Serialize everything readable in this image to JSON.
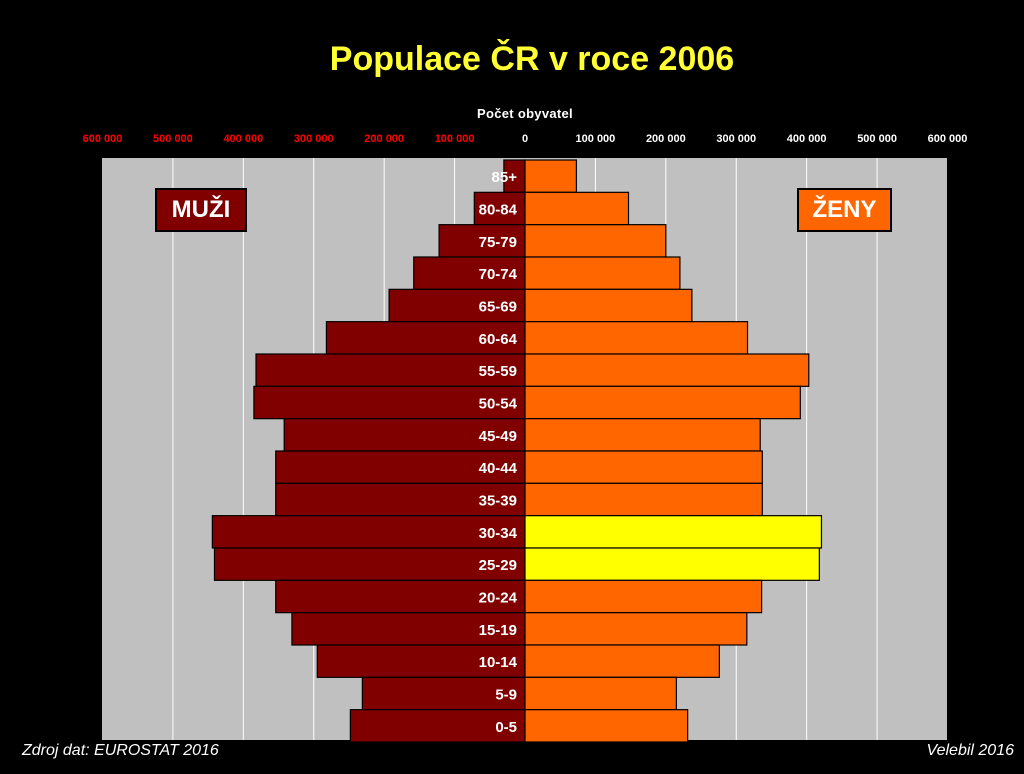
{
  "chart_data": {
    "type": "bar",
    "orientation": "horizontal-population-pyramid",
    "title": "Populace ČR v roce 2006",
    "xlabel": "Počet obyvatel",
    "xlim": [
      -600000,
      600000
    ],
    "x_ticks": [
      {
        "value": -600000,
        "label": "600 000"
      },
      {
        "value": -500000,
        "label": "500 000"
      },
      {
        "value": -400000,
        "label": "400 000"
      },
      {
        "value": -300000,
        "label": "300 000"
      },
      {
        "value": -200000,
        "label": "200 000"
      },
      {
        "value": -100000,
        "label": "100 000"
      },
      {
        "value": 0,
        "label": "0"
      },
      {
        "value": 100000,
        "label": "100 000"
      },
      {
        "value": 200000,
        "label": "200 000"
      },
      {
        "value": 300000,
        "label": "300 000"
      },
      {
        "value": 400000,
        "label": "400 000"
      },
      {
        "value": 500000,
        "label": "500 000"
      },
      {
        "value": 600000,
        "label": "600 000"
      }
    ],
    "categories": [
      "85+",
      "80-84",
      "75-79",
      "70-74",
      "65-69",
      "60-64",
      "55-59",
      "50-54",
      "45-49",
      "40-44",
      "35-39",
      "30-34",
      "25-29",
      "20-24",
      "15-19",
      "10-14",
      "5-9",
      "0-5"
    ],
    "series": [
      {
        "name": "MUŽI",
        "side": "left",
        "color": "#800000",
        "values": [
          30000,
          72000,
          122000,
          158000,
          193000,
          282000,
          382000,
          385000,
          342000,
          354000,
          354000,
          444000,
          441000,
          354000,
          331000,
          295000,
          231000,
          248000
        ]
      },
      {
        "name": "ŽENY",
        "side": "right",
        "color": "#ff6600",
        "highlight_color": "#ffff00",
        "highlight_categories": [
          "30-34",
          "25-29"
        ],
        "values": [
          73000,
          147000,
          200000,
          220000,
          237000,
          316000,
          403000,
          391000,
          334000,
          337000,
          337000,
          421000,
          418000,
          336000,
          315000,
          276000,
          215000,
          231000
        ]
      }
    ],
    "grid": true,
    "legend": "inside top-left and top-right"
  },
  "colors": {
    "background": "#000000",
    "plot_area": "#c0c0c0",
    "title": "#ffff33",
    "male_tick_labels": "#ff0000",
    "female_tick_labels": "#ffffff"
  },
  "footer": {
    "source": "Zdroj dat: EUROSTAT 2016",
    "author": "Velebil 2016"
  }
}
